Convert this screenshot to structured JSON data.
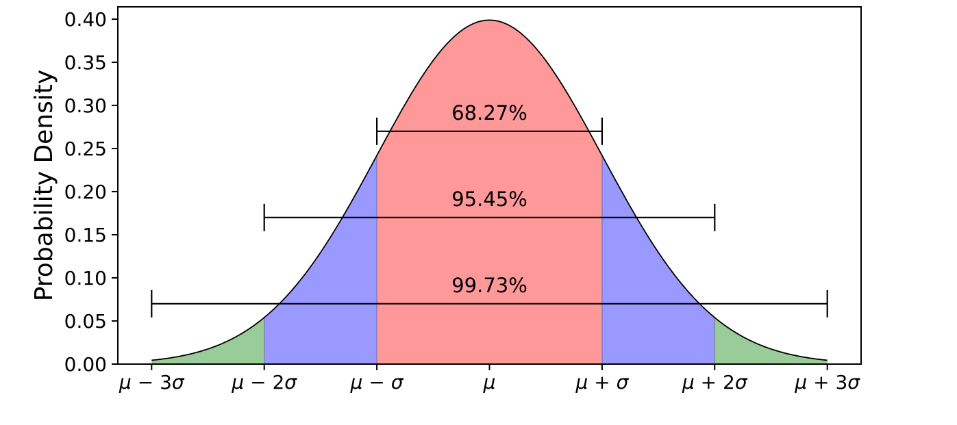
{
  "chart_data": {
    "type": "area",
    "title": "",
    "xlabel": "",
    "ylabel": "Probability Density",
    "distribution": "standard normal probability density curve",
    "peak_density": 0.3989,
    "curve_range_sigma": [
      -3,
      3
    ],
    "xlim_sigma": [
      -3.3,
      3.3
    ],
    "ylim": [
      0,
      0.4143
    ],
    "grid": false,
    "x_ticks": [
      {
        "sigma": -3,
        "label": "μ − 3σ"
      },
      {
        "sigma": -2,
        "label": "μ − 2σ"
      },
      {
        "sigma": -1,
        "label": "μ − σ"
      },
      {
        "sigma": 0,
        "label": "μ"
      },
      {
        "sigma": 1,
        "label": "μ + σ"
      },
      {
        "sigma": 2,
        "label": "μ + 2σ"
      },
      {
        "sigma": 3,
        "label": "μ + 3σ"
      }
    ],
    "y_ticks": [
      {
        "value": 0.0,
        "label": "0.00"
      },
      {
        "value": 0.05,
        "label": "0.05"
      },
      {
        "value": 0.1,
        "label": "0.10"
      },
      {
        "value": 0.15,
        "label": "0.15"
      },
      {
        "value": 0.2,
        "label": "0.20"
      },
      {
        "value": 0.25,
        "label": "0.25"
      },
      {
        "value": 0.3,
        "label": "0.30"
      },
      {
        "value": 0.35,
        "label": "0.35"
      },
      {
        "value": 0.4,
        "label": "0.40"
      }
    ],
    "bands": [
      {
        "name": "tail-band-left-2-to-3-sigma",
        "from_sigma": -3,
        "to_sigma": -2,
        "color": "#99cc99"
      },
      {
        "name": "band-left-1-to-2-sigma",
        "from_sigma": -2,
        "to_sigma": -1,
        "color": "#9999ff"
      },
      {
        "name": "central-band-within-1-sigma",
        "from_sigma": -1,
        "to_sigma": 1,
        "color": "#ff9999"
      },
      {
        "name": "band-right-1-to-2-sigma",
        "from_sigma": 1,
        "to_sigma": 2,
        "color": "#9999ff"
      },
      {
        "name": "tail-band-right-2-to-3-sigma",
        "from_sigma": 2,
        "to_sigma": 3,
        "color": "#99cc99"
      }
    ],
    "coverage_intervals": [
      {
        "label": "68.27%",
        "from_sigma": -1,
        "to_sigma": 1,
        "bar_y_density": 0.27
      },
      {
        "label": "95.45%",
        "from_sigma": -2,
        "to_sigma": 2,
        "bar_y_density": 0.17
      },
      {
        "label": "99.73%",
        "from_sigma": -3,
        "to_sigma": 3,
        "bar_y_density": 0.07
      }
    ],
    "colors": {
      "curve": "#000000",
      "axis": "#000000",
      "text": "#000000",
      "background": "#ffffff",
      "band_red": "#ff9999",
      "band_blue": "#9999ff",
      "band_green": "#99cc99"
    }
  }
}
